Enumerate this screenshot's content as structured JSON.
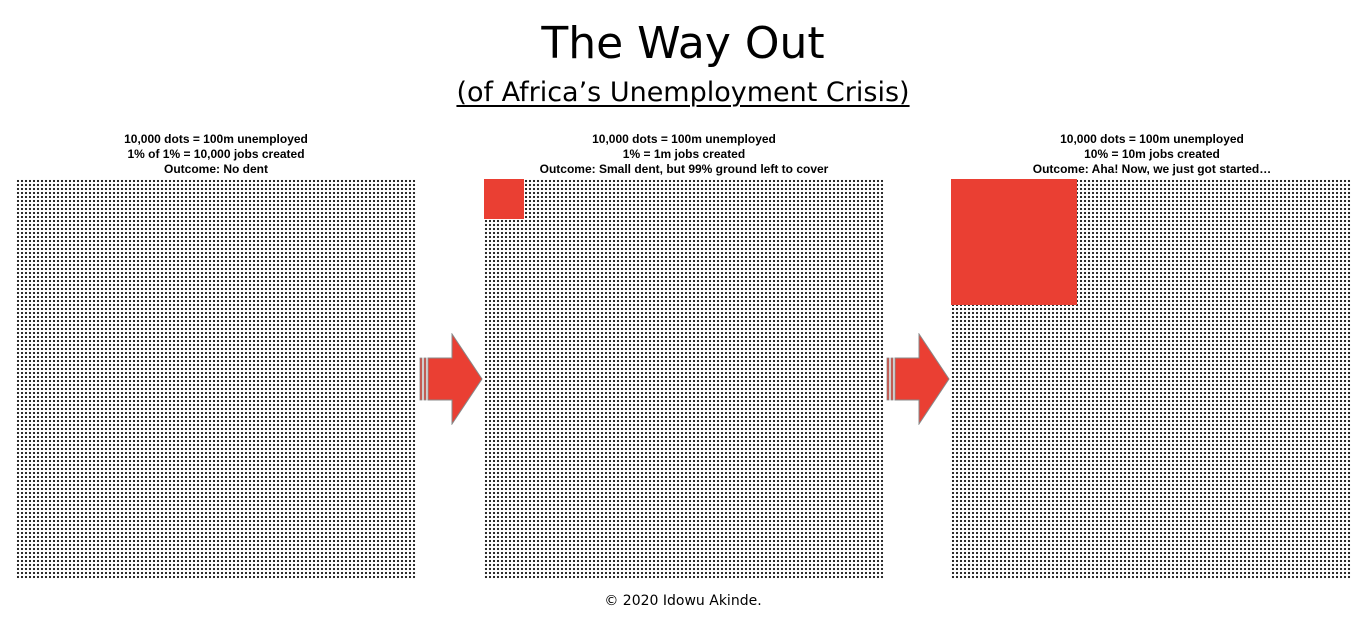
{
  "title": "The Way Out",
  "subtitle": "(of Africa’s Unemployment Crisis)",
  "panels": [
    {
      "line1": "10,000 dots = 100m unemployed",
      "line2": "1% of 1% = 10,000 jobs created",
      "line3": "Outcome: No dent",
      "filled_fraction": 0.0001
    },
    {
      "line1": "10,000 dots = 100m unemployed",
      "line2": "1% = 1m jobs created",
      "line3": "Outcome: Small dent, but 99% ground left to cover",
      "filled_fraction": 0.01
    },
    {
      "line1": "10,000 dots = 100m unemployed",
      "line2": "10% = 10m jobs created",
      "line3": "Outcome: Aha! Now, we just got started…",
      "filled_fraction": 0.1
    }
  ],
  "colors": {
    "highlight": "#ea3f33",
    "dots": "#1a1a1a"
  },
  "footer": "© 2020 Idowu Akinde."
}
